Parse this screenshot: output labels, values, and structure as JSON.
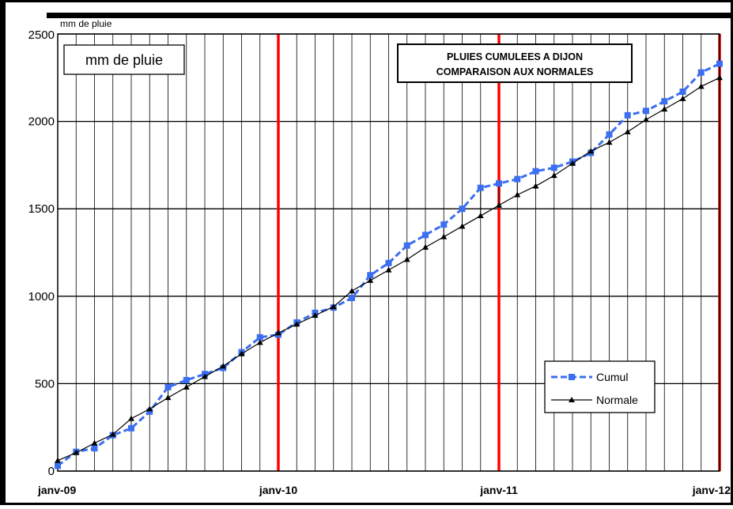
{
  "chart_data": {
    "type": "line",
    "title": "PLUIES CUMULEES A DIJON",
    "subtitle": "COMPARAISON AUX NORMALES",
    "unit_label_top": "mm de pluie",
    "unit_label_box": "mm de pluie",
    "xlabel": "",
    "ylabel": "",
    "ylim": [
      0,
      2500
    ],
    "xlim": [
      0,
      36
    ],
    "y_ticks": [
      "0",
      "500",
      "1000",
      "1500",
      "2000",
      "2500"
    ],
    "x_ticks": [
      {
        "x": 0,
        "label": "janv-09"
      },
      {
        "x": 12,
        "label": "janv-10"
      },
      {
        "x": 24,
        "label": "janv-11"
      },
      {
        "x": 36,
        "label": "janv-12"
      }
    ],
    "year_markers": [
      12,
      24,
      36
    ],
    "grid": true,
    "legend_position": "bottom-right",
    "series": [
      {
        "name": "Cumul",
        "color": "#3b6ef0",
        "marker": "square",
        "x": [
          0,
          1,
          2,
          3,
          4,
          5,
          6,
          7,
          8,
          9,
          10,
          11,
          12,
          13,
          14,
          15,
          16,
          17,
          18,
          19,
          20,
          21,
          22,
          23,
          24,
          25,
          26,
          27,
          28,
          29,
          30,
          31,
          32,
          33,
          34,
          35,
          36
        ],
        "values": [
          30,
          110,
          130,
          205,
          245,
          340,
          480,
          520,
          555,
          590,
          680,
          765,
          780,
          850,
          905,
          935,
          990,
          1120,
          1190,
          1290,
          1350,
          1410,
          1500,
          1620,
          1645,
          1670,
          1715,
          1735,
          1770,
          1820,
          1925,
          2035,
          2060,
          2115,
          2170,
          2280,
          2330
        ]
      },
      {
        "name": "Normale",
        "color": "#000000",
        "marker": "triangle",
        "x": [
          0,
          1,
          2,
          3,
          4,
          5,
          6,
          7,
          8,
          9,
          10,
          11,
          12,
          13,
          14,
          15,
          16,
          17,
          18,
          19,
          20,
          21,
          22,
          23,
          24,
          25,
          26,
          27,
          28,
          29,
          30,
          31,
          32,
          33,
          34,
          35,
          36
        ],
        "values": [
          60,
          105,
          160,
          210,
          300,
          355,
          420,
          480,
          540,
          600,
          670,
          735,
          790,
          840,
          890,
          940,
          1030,
          1090,
          1150,
          1210,
          1280,
          1340,
          1400,
          1460,
          1520,
          1580,
          1630,
          1690,
          1760,
          1830,
          1880,
          1940,
          2010,
          2070,
          2130,
          2200,
          2250
        ]
      }
    ]
  }
}
